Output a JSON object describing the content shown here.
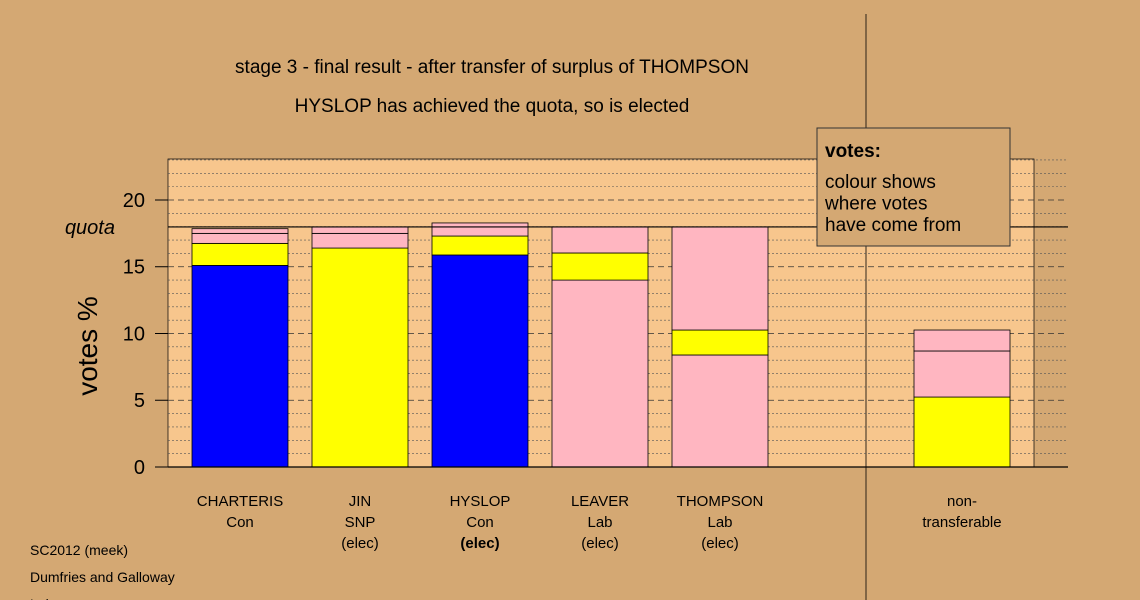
{
  "chart_data": {
    "type": "stacked_bar",
    "title": "stage 3 - final result - after transfer of surplus of THOMPSON",
    "subtitle": "HYSLOP has achieved the quota, so is elected",
    "y_label": "votes %",
    "ylim": [
      0,
      23.07
    ],
    "yticks": [
      0,
      5,
      10,
      15,
      20
    ],
    "minor_yticks": [
      1,
      2,
      3,
      4,
      6,
      7,
      8,
      9,
      11,
      12,
      13,
      14,
      16,
      17,
      18,
      19,
      21,
      22,
      23
    ],
    "quota": 17.98,
    "quota_label": "quota",
    "elected_now": 2,
    "bars": [
      {
        "label": [
          "CHARTERIS",
          "Con"
        ],
        "segments": [
          {
            "value": 15.1,
            "color": "#0000ff"
          },
          {
            "value": 1.65,
            "color": "#ffff00"
          },
          {
            "value": 0.75,
            "color": "#ffb6c1"
          },
          {
            "value": 0.35,
            "color": "#ffb6c1"
          }
        ]
      },
      {
        "label": [
          "JIN",
          "SNP",
          "(elec)"
        ],
        "segments": [
          {
            "value": 16.4,
            "color": "#ffff00"
          },
          {
            "value": 1.1,
            "color": "#ffb6c1"
          },
          {
            "value": 0.48,
            "color": "#ffb6c1"
          }
        ]
      },
      {
        "label": [
          "HYSLOP",
          "Con",
          "(elec)"
        ],
        "segments": [
          {
            "value": 15.88,
            "color": "#0000ff"
          },
          {
            "value": 1.42,
            "color": "#ffff00"
          },
          {
            "value": 0.68,
            "color": "#ffb6c1"
          },
          {
            "value": 0.3,
            "color": "#ffb6c1"
          }
        ]
      },
      {
        "label": [
          "LEAVER",
          "Lab",
          "(elec)"
        ],
        "segments": [
          {
            "value": 14.0,
            "color": "#ffb6c1"
          },
          {
            "value": 2.03,
            "color": "#ffff00"
          },
          {
            "value": 1.95,
            "color": "#ffb6c1"
          }
        ]
      },
      {
        "label": [
          "THOMPSON",
          "Lab",
          "(elec)"
        ],
        "segments": [
          {
            "value": 8.39,
            "color": "#ffb6c1"
          },
          {
            "value": 1.87,
            "color": "#ffff00"
          },
          {
            "value": 7.72,
            "color": "#ffb6c1"
          }
        ]
      },
      {
        "label": [
          "non-",
          "transferable"
        ],
        "segments": [
          {
            "value": 5.24,
            "color": "#ffff00"
          },
          {
            "value": 3.45,
            "color": "#ffb6c1"
          },
          {
            "value": 1.57,
            "color": "#ffb6c1"
          }
        ]
      }
    ],
    "note": {
      "heading": "votes:",
      "lines": [
        "colour shows",
        "where votes",
        "have come from"
      ]
    },
    "footer": [
      "SC2012 (meek)",
      "Dumfries and Galloway",
      "Lab"
    ]
  }
}
